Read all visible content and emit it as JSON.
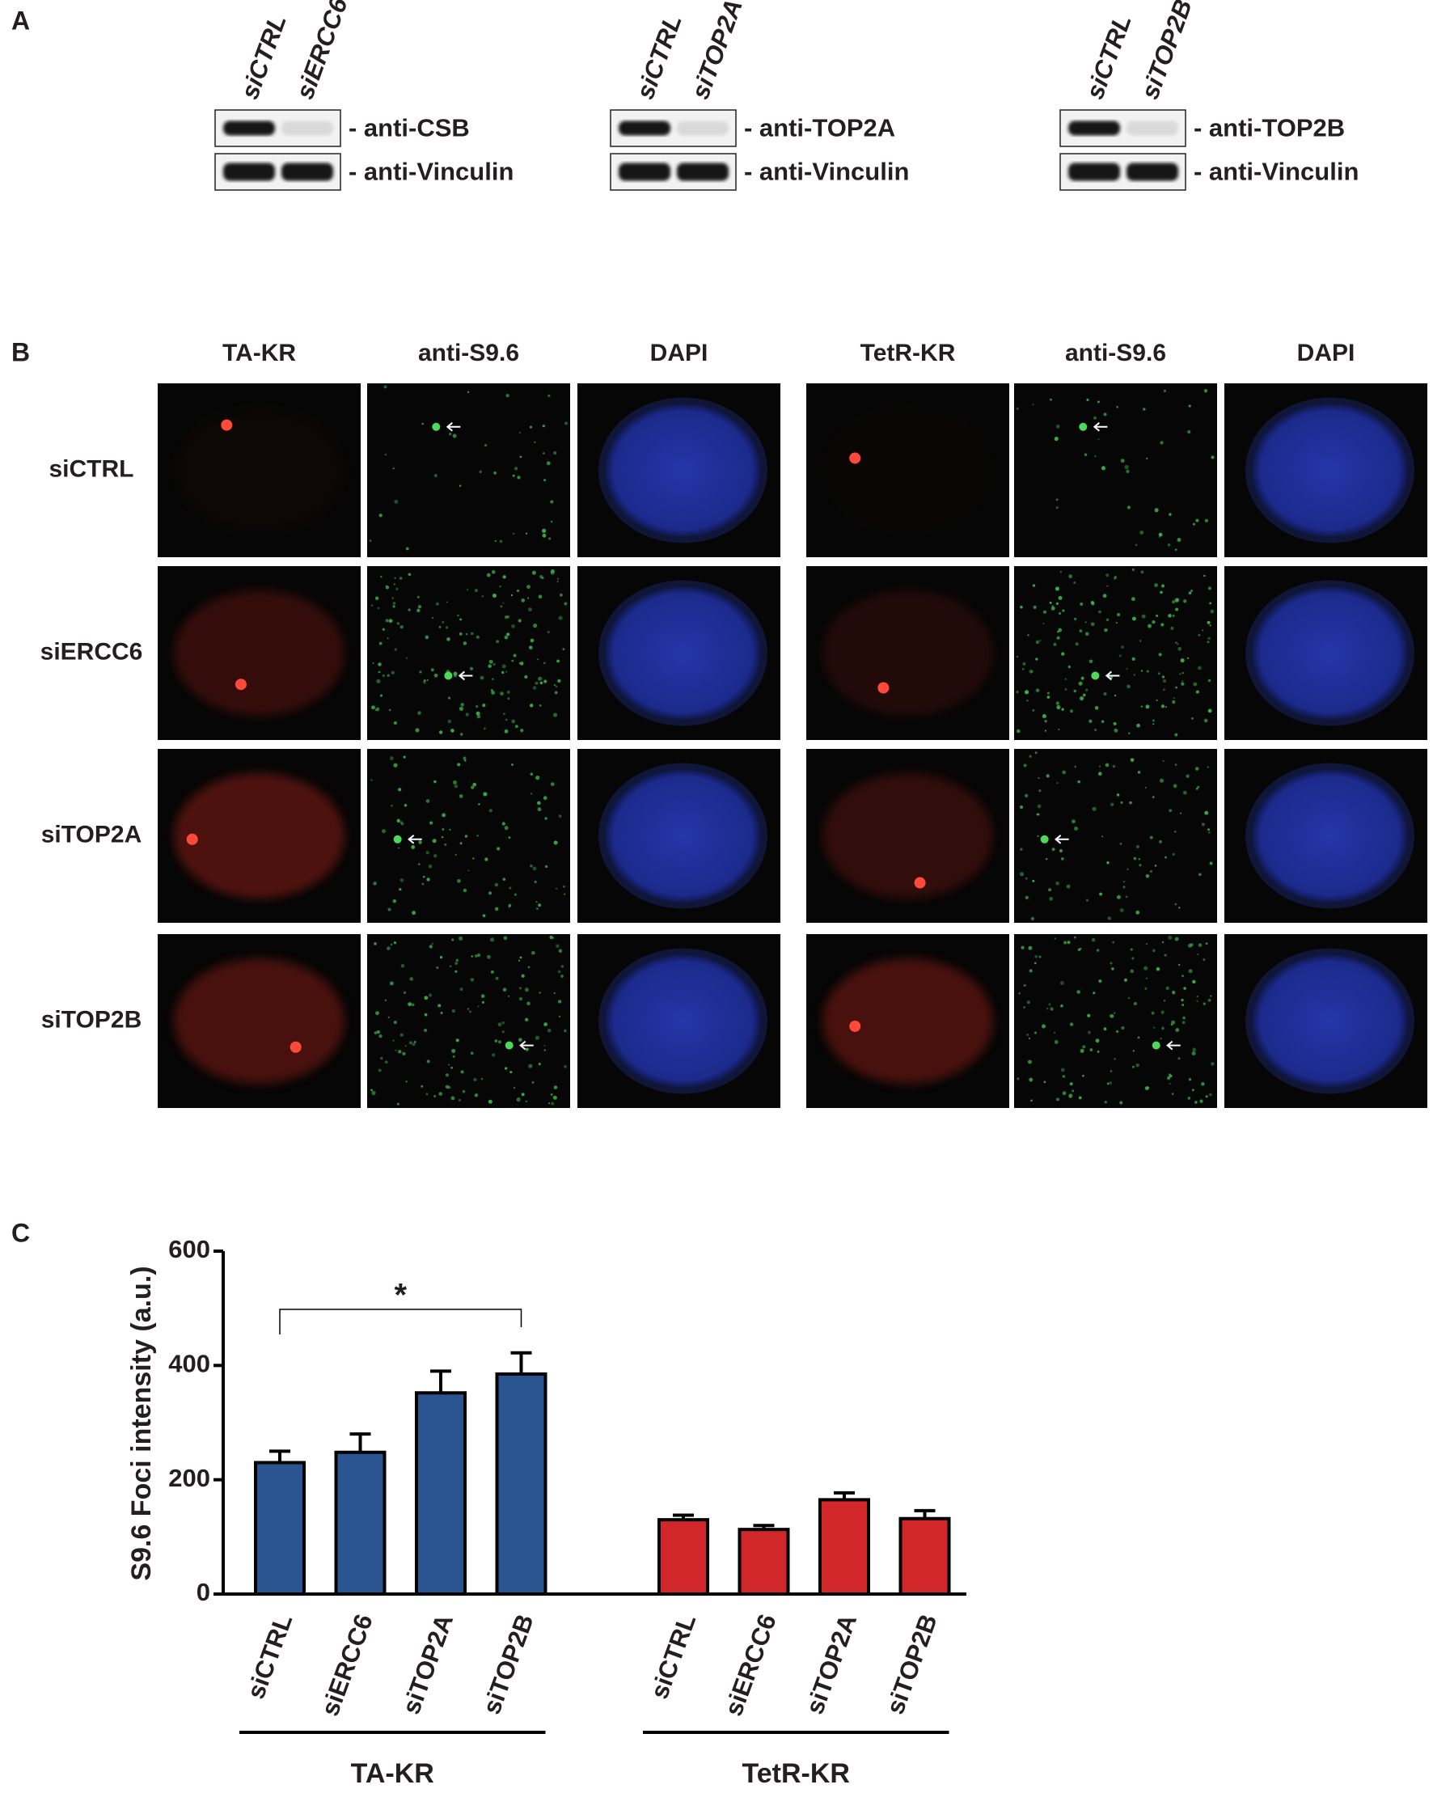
{
  "panels": {
    "a": {
      "label": "A",
      "blots": [
        {
          "lanes": [
            "siCTRL",
            "siERCC6"
          ],
          "bands": [
            "- anti-CSB",
            "- anti-Vinculin"
          ]
        },
        {
          "lanes": [
            "siCTRL",
            "siTOP2A"
          ],
          "bands": [
            "- anti-TOP2A",
            "- anti-Vinculin"
          ]
        },
        {
          "lanes": [
            "siCTRL",
            "siTOP2B"
          ],
          "bands": [
            "- anti-TOP2B",
            "- anti-Vinculin"
          ]
        }
      ]
    },
    "b": {
      "label": "B",
      "columns": [
        "TA-KR",
        "anti-S9.6",
        "DAPI",
        "TetR-KR",
        "anti-S9.6",
        "DAPI"
      ],
      "rows": [
        "siCTRL",
        "siERCC6",
        "siTOP2A",
        "siTOP2B"
      ]
    }
  },
  "chart_data": {
    "type": "bar",
    "panel_label": "C",
    "ylabel": "S9.6 Foci intensity (a.u.)",
    "categories": [
      "siCTRL",
      "siERCC6",
      "siTOP2A",
      "siTOP2B"
    ],
    "series": [
      {
        "name": "TA-KR",
        "color": "#2a5591",
        "values": [
          230,
          248,
          352,
          385
        ],
        "errors": [
          20,
          32,
          38,
          37
        ]
      },
      {
        "name": "TetR-KR",
        "color": "#d1262a",
        "values": [
          130,
          113,
          165,
          132
        ],
        "errors": [
          8,
          7,
          12,
          14
        ]
      }
    ],
    "ylim": [
      0,
      600
    ],
    "yticks": [
      0,
      200,
      400,
      600
    ],
    "significance": "*"
  }
}
